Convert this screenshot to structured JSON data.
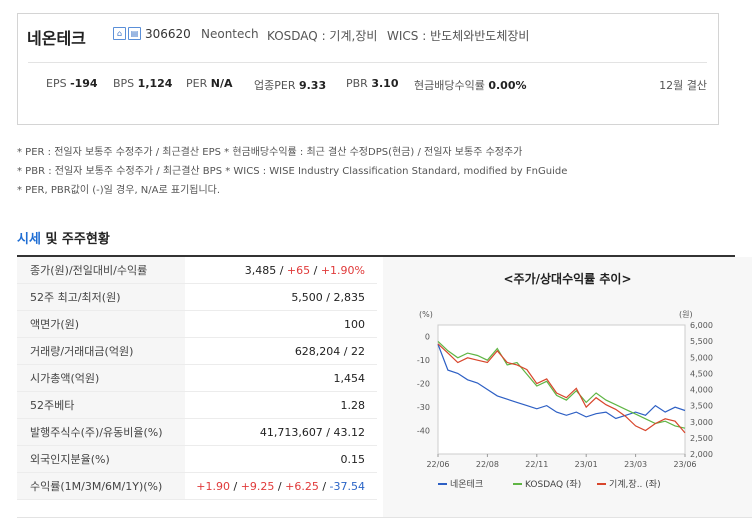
{
  "header": {
    "company_name": "네온테크",
    "icon1": "home-icon",
    "icon2": "report-icon",
    "stock_code": "306620",
    "english_name": "Neontech",
    "market": "KOSDAQ : 기계,장비",
    "wics": "WICS : 반도체와반도체장비"
  },
  "ratios": [
    {
      "label": "EPS",
      "value": "-194"
    },
    {
      "label": "BPS",
      "value": "1,124"
    },
    {
      "label": "PER",
      "value": "N/A"
    },
    {
      "label": "업종PER",
      "value": "9.33"
    },
    {
      "label": "PBR",
      "value": "3.10"
    },
    {
      "label": "현금배당수익률",
      "value": "0.00%"
    }
  ],
  "settlement": "12월 결산",
  "notes": [
    "* PER : 전일자 보통주 수정주가 / 최근결산 EPS * 현금배당수익률 : 최근 결산 수정DPS(현금) / 전일자 보통주 수정주가",
    "* PBR : 전일자 보통주 수정주가 / 최근결산 BPS * WICS : WISE Industry Classification Standard, modified by FnGuide",
    "* PER, PBR값이 (-)일 경우, N/A로 표기됩니다."
  ],
  "section": {
    "title_blue": "시세",
    "title_rest": " 및 주주현황"
  },
  "table": [
    {
      "label": "종가(원)/전일대비/수익률",
      "parts": [
        {
          "t": "3,485 / ",
          "c": ""
        },
        {
          "t": "+65",
          "c": "r"
        },
        {
          "t": " / ",
          "c": ""
        },
        {
          "t": "+1.90%",
          "c": "r"
        }
      ]
    },
    {
      "label": "52주 최고/최저(원)",
      "parts": [
        {
          "t": "5,500 / 2,835",
          "c": ""
        }
      ]
    },
    {
      "label": "액면가(원)",
      "parts": [
        {
          "t": "100",
          "c": ""
        }
      ]
    },
    {
      "label": "거래량/거래대금(억원)",
      "parts": [
        {
          "t": "628,204 / 22",
          "c": ""
        }
      ]
    },
    {
      "label": "시가총액(억원)",
      "parts": [
        {
          "t": "1,454",
          "c": ""
        }
      ]
    },
    {
      "label": "52주베타",
      "parts": [
        {
          "t": "1.28",
          "c": ""
        }
      ]
    },
    {
      "label": "발행주식수(주)/유동비율(%)",
      "parts": [
        {
          "t": "41,713,607 / 43.12",
          "c": ""
        }
      ]
    },
    {
      "label": "외국인지분율(%)",
      "parts": [
        {
          "t": "0.15",
          "c": ""
        }
      ]
    },
    {
      "label": "수익률(1M/3M/6M/1Y)(%)",
      "parts": [
        {
          "t": "+1.90",
          "c": "r"
        },
        {
          "t": " / ",
          "c": ""
        },
        {
          "t": "+9.25",
          "c": "r"
        },
        {
          "t": " / ",
          "c": ""
        },
        {
          "t": "+6.25",
          "c": "r"
        },
        {
          "t": " / ",
          "c": ""
        },
        {
          "t": "-37.54",
          "c": "b"
        }
      ]
    }
  ],
  "chart_data": {
    "type": "line",
    "title": "<주가/상대수익률 추이>",
    "left_unit": "(%)",
    "right_unit": "(원)",
    "x_ticks": [
      "22/06",
      "22/08",
      "22/11",
      "23/01",
      "23/03",
      "23/06"
    ],
    "y_left_ticks": [
      0,
      -10,
      -20,
      -30,
      -40
    ],
    "y_left_range": [
      -50,
      5
    ],
    "y_right_ticks": [
      "6,000",
      "5,500",
      "5,000",
      "4,500",
      "4,000",
      "3,500",
      "3,000",
      "2,500",
      "2,000"
    ],
    "y_right_range": [
      2000,
      6000
    ],
    "legend": [
      "네온테크",
      "KOSDAQ (좌)",
      "기계,장.. (좌)"
    ],
    "colors": {
      "네온테크": "#2d5fc4",
      "KOSDAQ (좌)": "#5fb544",
      "기계,장.. (좌)": "#d8462c"
    },
    "series": [
      {
        "name": "네온테크",
        "values": [
          5400,
          4600,
          4500,
          4300,
          4200,
          4000,
          3800,
          3700,
          3600,
          3500,
          3400,
          3500,
          3300,
          3200,
          3300,
          3150,
          3250,
          3300,
          3100,
          3200,
          3300,
          3200,
          3500,
          3300,
          3450,
          3350
        ]
      },
      {
        "name": "KOSDAQ (좌)",
        "values": [
          -2,
          -6,
          -9,
          -7,
          -8,
          -10,
          -5,
          -12,
          -11,
          -16,
          -21,
          -19,
          -25,
          -27,
          -23,
          -28,
          -24,
          -27,
          -29,
          -31,
          -33,
          -35,
          -37,
          -36,
          -38,
          -39
        ]
      },
      {
        "name": "기계,장.. (좌)",
        "values": [
          -3,
          -7,
          -11,
          -9,
          -10,
          -11,
          -6,
          -11,
          -12,
          -14,
          -20,
          -18,
          -24,
          -26,
          -22,
          -30,
          -26,
          -29,
          -31,
          -34,
          -38,
          -40,
          -37,
          -35,
          -36,
          -41
        ]
      }
    ]
  }
}
